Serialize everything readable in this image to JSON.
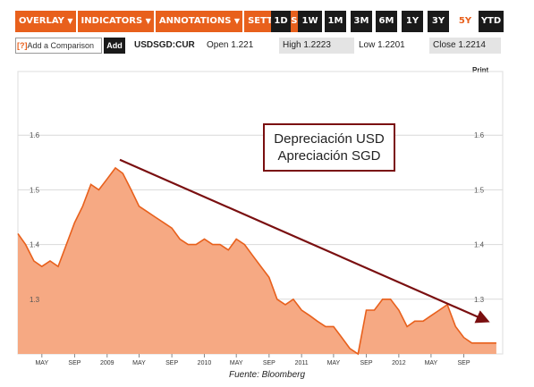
{
  "toolbar": {
    "menus": [
      "OVERLAY",
      "INDICATORS",
      "ANNOTATIONS",
      "SETTINGS"
    ],
    "ranges": [
      "1D",
      "1W",
      "1M",
      "3M",
      "6M",
      "1Y",
      "3Y",
      "5Y",
      "YTD"
    ],
    "active_range": "5Y",
    "accent_color": "#e8601c"
  },
  "infobar": {
    "comparison_prefix": "[?]",
    "comparison_placeholder": "Add a Comparison",
    "add_label": "Add",
    "ticker": "USDSGD:CUR",
    "open": "Open 1.221",
    "high": "High 1.2223",
    "low": "Low 1.2201",
    "close": "Close 1.2214"
  },
  "print_label": "Print",
  "annotation": {
    "line1": "Depreciación USD",
    "line2": "Apreciación SGD",
    "arrow_color": "#7a0f10"
  },
  "source": "Fuente: Bloomberg",
  "chart_data": {
    "type": "area",
    "x_tick_labels": [
      "MAY",
      "SEP",
      "2009",
      "MAY",
      "SEP",
      "2010",
      "MAY",
      "SEP",
      "2011",
      "MAY",
      "SEP",
      "2012",
      "MAY",
      "SEP"
    ],
    "y_ticks": [
      1.3,
      1.4,
      1.5,
      1.6
    ],
    "ylim": [
      1.2,
      1.7
    ],
    "grid": true,
    "fill_color": "#f6a983",
    "line_color": "#e8601c",
    "series": [
      {
        "x": [
          "2008-02",
          "2008-03",
          "2008-04",
          "2008-05",
          "2008-06",
          "2008-07",
          "2008-08",
          "2008-09",
          "2008-10",
          "2008-11",
          "2008-12",
          "2009-01",
          "2009-02",
          "2009-03",
          "2009-04",
          "2009-05",
          "2009-06",
          "2009-07",
          "2009-08",
          "2009-09",
          "2009-10",
          "2009-11",
          "2009-12",
          "2010-01",
          "2010-02",
          "2010-03",
          "2010-04",
          "2010-05",
          "2010-06",
          "2010-07",
          "2010-08",
          "2010-09",
          "2010-10",
          "2010-11",
          "2010-12",
          "2011-01",
          "2011-02",
          "2011-03",
          "2011-04",
          "2011-05",
          "2011-06",
          "2011-07",
          "2011-08",
          "2011-09",
          "2011-10",
          "2011-11",
          "2011-12",
          "2012-01",
          "2012-02",
          "2012-03",
          "2012-04",
          "2012-05",
          "2012-06",
          "2012-07",
          "2012-08",
          "2012-09",
          "2012-10",
          "2012-11",
          "2012-12",
          "2013-01"
        ],
        "y": [
          1.42,
          1.4,
          1.37,
          1.36,
          1.37,
          1.36,
          1.4,
          1.44,
          1.47,
          1.51,
          1.5,
          1.52,
          1.54,
          1.53,
          1.5,
          1.47,
          1.46,
          1.45,
          1.44,
          1.43,
          1.41,
          1.4,
          1.4,
          1.41,
          1.4,
          1.4,
          1.39,
          1.41,
          1.4,
          1.38,
          1.36,
          1.34,
          1.3,
          1.29,
          1.3,
          1.28,
          1.27,
          1.26,
          1.25,
          1.25,
          1.23,
          1.21,
          1.2,
          1.28,
          1.28,
          1.3,
          1.3,
          1.28,
          1.25,
          1.26,
          1.26,
          1.27,
          1.28,
          1.29,
          1.25,
          1.23,
          1.22,
          1.22,
          1.22,
          1.22
        ]
      }
    ],
    "trend_arrow": {
      "from": [
        "2009-02",
        1.555
      ],
      "to": [
        "2013-01",
        1.26
      ]
    }
  }
}
